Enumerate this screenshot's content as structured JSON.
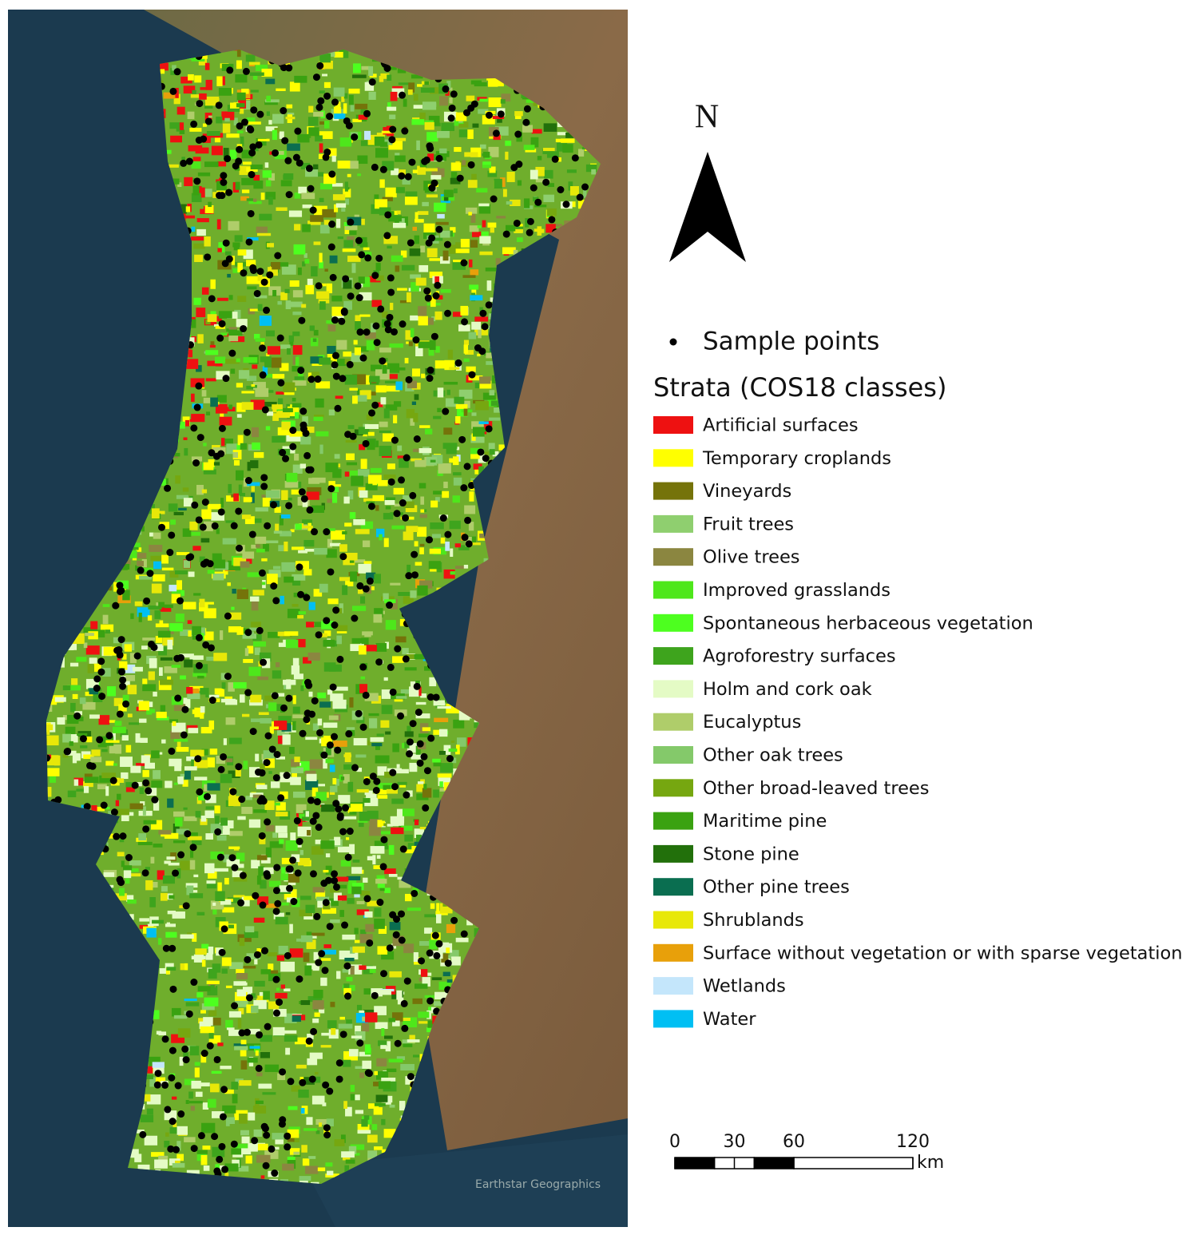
{
  "map": {
    "north_label": "N",
    "attribution": "Earthstar Geographics",
    "legend": {
      "points_label": "Sample points",
      "strata_title": "Strata (COS18 classes)",
      "classes": [
        {
          "name": "Artificial surfaces",
          "color": "#ee1111"
        },
        {
          "name": "Temporary croplands",
          "color": "#ffff00"
        },
        {
          "name": "Vineyards",
          "color": "#75730a"
        },
        {
          "name": "Fruit trees",
          "color": "#8fcf6f"
        },
        {
          "name": "Olive trees",
          "color": "#8b8640"
        },
        {
          "name": "Improved grasslands",
          "color": "#4ee71b"
        },
        {
          "name": "Spontaneous herbaceous vegetation",
          "color": "#4dff1f"
        },
        {
          "name": "Agroforestry surfaces",
          "color": "#3ea41d"
        },
        {
          "name": "Holm and cork oak",
          "color": "#e4fbc5"
        },
        {
          "name": "Eucalyptus",
          "color": "#afcd6a"
        },
        {
          "name": "Other oak trees",
          "color": "#84c96a"
        },
        {
          "name": "Other broad-leaved trees",
          "color": "#76a710"
        },
        {
          "name": "Maritime pine",
          "color": "#3aa211"
        },
        {
          "name": "Stone pine",
          "color": "#22700b"
        },
        {
          "name": "Other pine trees",
          "color": "#0a6e50"
        },
        {
          "name": "Shrublands",
          "color": "#e8e808"
        },
        {
          "name": "Surface without vegetation or with sparse vegetation",
          "color": "#e8a00a"
        },
        {
          "name": "Wetlands",
          "color": "#c4e6fb"
        },
        {
          "name": "Water",
          "color": "#00bff3"
        }
      ]
    },
    "scale_bar": {
      "ticks": [
        0,
        30,
        60,
        120
      ],
      "unit": "km"
    }
  }
}
